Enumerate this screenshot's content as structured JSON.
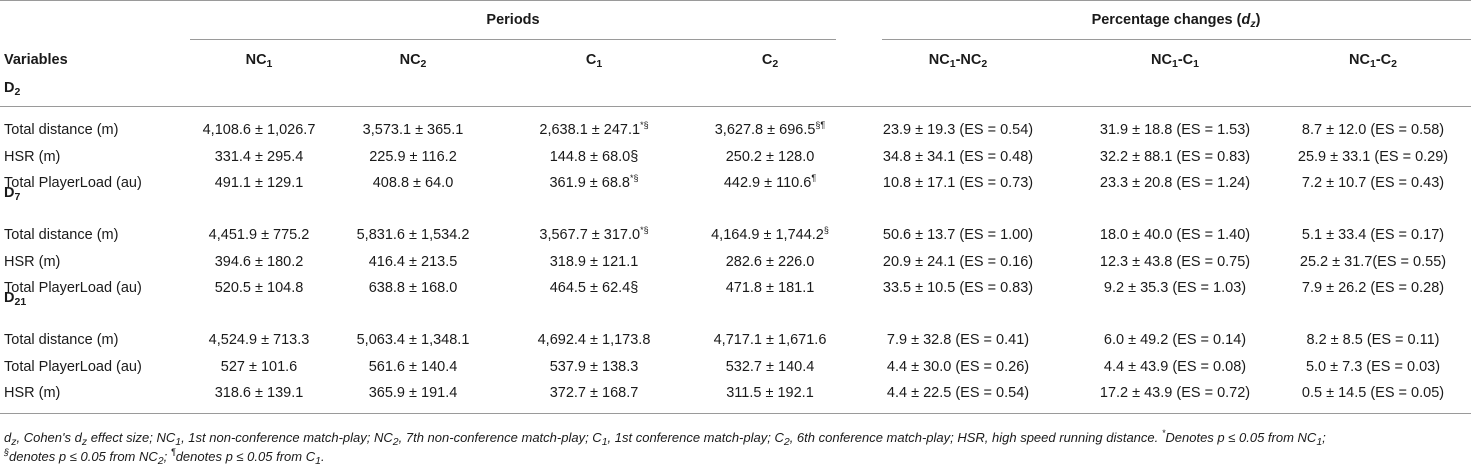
{
  "header": {
    "periods": "Periods",
    "percentage_changes": "Percentage changes (",
    "dz_symbol": "d",
    "dz_sub": "z",
    "paren_close": ")",
    "variables": "Variables",
    "columns": [
      {
        "main": "NC",
        "sub": "1"
      },
      {
        "main": "NC",
        "sub": "2"
      },
      {
        "main": "C",
        "sub": "1"
      },
      {
        "main": "C",
        "sub": "2"
      },
      {
        "a": "NC",
        "asub": "1",
        "dash": "-",
        "b": "NC",
        "bsub": "2"
      },
      {
        "a": "NC",
        "asub": "1",
        "dash": "-",
        "b": "C",
        "bsub": "1"
      },
      {
        "a": "NC",
        "asub": "1",
        "dash": "-",
        "b": "C",
        "bsub": "2"
      }
    ]
  },
  "groups": [
    {
      "label": "D",
      "label_sub": "2",
      "rows": [
        {
          "variable": "Total distance (m)",
          "nc1": "4,108.6 ± 1,026.7",
          "nc2": "3,573.1 ± 365.1",
          "c1": "2,638.1 ± 247.1",
          "c1_sup": "*§",
          "c2": "3,627.8 ± 696.5",
          "c2_sup": "§¶",
          "d1": "23.9 ± 19.3 (ES = 0.54)",
          "d2": "31.9 ± 18.8 (ES = 1.53)",
          "d3": "8.7 ± 12.0 (ES = 0.58)"
        },
        {
          "variable": "HSR (m)",
          "nc1": "331.4 ± 295.4",
          "nc2": "225.9 ± 116.2",
          "c1": "144.8 ± 68.0§",
          "c1_sup": "",
          "c2": "250.2 ± 128.0",
          "c2_sup": "",
          "d1": "34.8 ± 34.1 (ES = 0.48)",
          "d2": "32.2 ± 88.1 (ES = 0.83)",
          "d3": "25.9 ± 33.1 (ES = 0.29)"
        },
        {
          "variable": "Total PlayerLoad (au)",
          "nc1": "491.1 ± 129.1",
          "nc2": "408.8 ± 64.0",
          "c1": "361.9 ± 68.8",
          "c1_sup": "*§",
          "c2": "442.9 ± 110.6",
          "c2_sup": "¶",
          "d1": "10.8 ± 17.1 (ES = 0.73)",
          "d2": "23.3 ± 20.8 (ES = 1.24)",
          "d3": "7.2 ± 10.7 (ES = 0.43)"
        }
      ]
    },
    {
      "label": "D",
      "label_sub": "7",
      "rows": [
        {
          "variable": "Total distance (m)",
          "nc1": "4,451.9 ± 775.2",
          "nc2": "5,831.6 ± 1,534.2",
          "c1": "3,567.7 ± 317.0",
          "c1_sup": "*§",
          "c2": "4,164.9 ± 1,744.2",
          "c2_sup": "§",
          "d1": "50.6 ± 13.7 (ES = 1.00)",
          "d2": "18.0 ± 40.0 (ES = 1.40)",
          "d3": "5.1 ± 33.4 (ES = 0.17)"
        },
        {
          "variable": "HSR (m)",
          "nc1": "394.6 ± 180.2",
          "nc2": "416.4 ± 213.5",
          "c1": "318.9 ± 121.1",
          "c1_sup": "",
          "c2": "282.6 ± 226.0",
          "c2_sup": "",
          "d1": "20.9 ± 24.1 (ES = 0.16)",
          "d2": "12.3 ± 43.8 (ES = 0.75)",
          "d3": "25.2 ± 31.7(ES = 0.55)"
        },
        {
          "variable": "Total PlayerLoad (au)",
          "nc1": "520.5 ± 104.8",
          "nc2": "638.8 ± 168.0",
          "c1": "464.5 ± 62.4§",
          "c1_sup": "",
          "c2": "471.8 ± 181.1",
          "c2_sup": "",
          "d1": "33.5 ± 10.5 (ES = 0.83)",
          "d2": "9.2 ± 35.3 (ES = 1.03)",
          "d3": "7.9 ± 26.2 (ES = 0.28)"
        }
      ]
    },
    {
      "label": "D",
      "label_sub": "21",
      "rows": [
        {
          "variable": "Total distance (m)",
          "nc1": "4,524.9 ± 713.3",
          "nc2": "5,063.4 ± 1,348.1",
          "c1": "4,692.4 ± 1,173.8",
          "c1_sup": "",
          "c2": "4,717.1 ± 1,671.6",
          "c2_sup": "",
          "d1": "7.9 ± 32.8 (ES = 0.41)",
          "d2": "6.0 ± 49.2 (ES = 0.14)",
          "d3": "8.2 ± 8.5 (ES = 0.11)"
        },
        {
          "variable": "Total PlayerLoad (au)",
          "nc1": "527 ± 101.6",
          "nc2": "561.6 ± 140.4",
          "c1": "537.9 ± 138.3",
          "c1_sup": "",
          "c2": "532.7 ± 140.4",
          "c2_sup": "",
          "d1": "4.4 ± 30.0 (ES = 0.26)",
          "d2": "4.4 ± 43.9 (ES = 0.08)",
          "d3": "5.0 ± 7.3 (ES = 0.03)"
        },
        {
          "variable": "HSR (m)",
          "nc1": "318.6 ± 139.1",
          "nc2": "365.9 ± 191.4",
          "c1": "372.7 ± 168.7",
          "c1_sup": "",
          "c2": "311.5 ± 192.1",
          "c2_sup": "",
          "d1": "4.4 ± 22.5 (ES = 0.54)",
          "d2": "17.2 ± 43.9 (ES = 0.72)",
          "d3": "0.5 ± 14.5 (ES = 0.05)"
        }
      ]
    }
  ],
  "footnote": {
    "p1": "d",
    "p1_sub": "z",
    "p2": ", Cohen's d",
    "p2_sub": "z",
    "p3": " effect size; NC",
    "p3_sub": "1",
    "p4": ", 1st non-conference match-play; NC",
    "p4_sub": "2",
    "p5": ", 7th non-conference match-play; C",
    "p5_sub": "1",
    "p6": ", 1st conference match-play; C",
    "p6_sub": "2",
    "p7": ", 6th conference match-play; HSR, high speed running distance. ",
    "sym1": "*",
    "p8": "Denotes p ≤ 0.05 from NC",
    "p8_sub": "1",
    "p8b": ";",
    "sym2": "§",
    "p9": "denotes p ≤ 0.05 from NC",
    "p9_sub": "2",
    "p9b": "; ",
    "sym3": "¶",
    "p10": "denotes p ≤ 0.05 from C",
    "p10_sub": "1",
    "p10b": "."
  }
}
